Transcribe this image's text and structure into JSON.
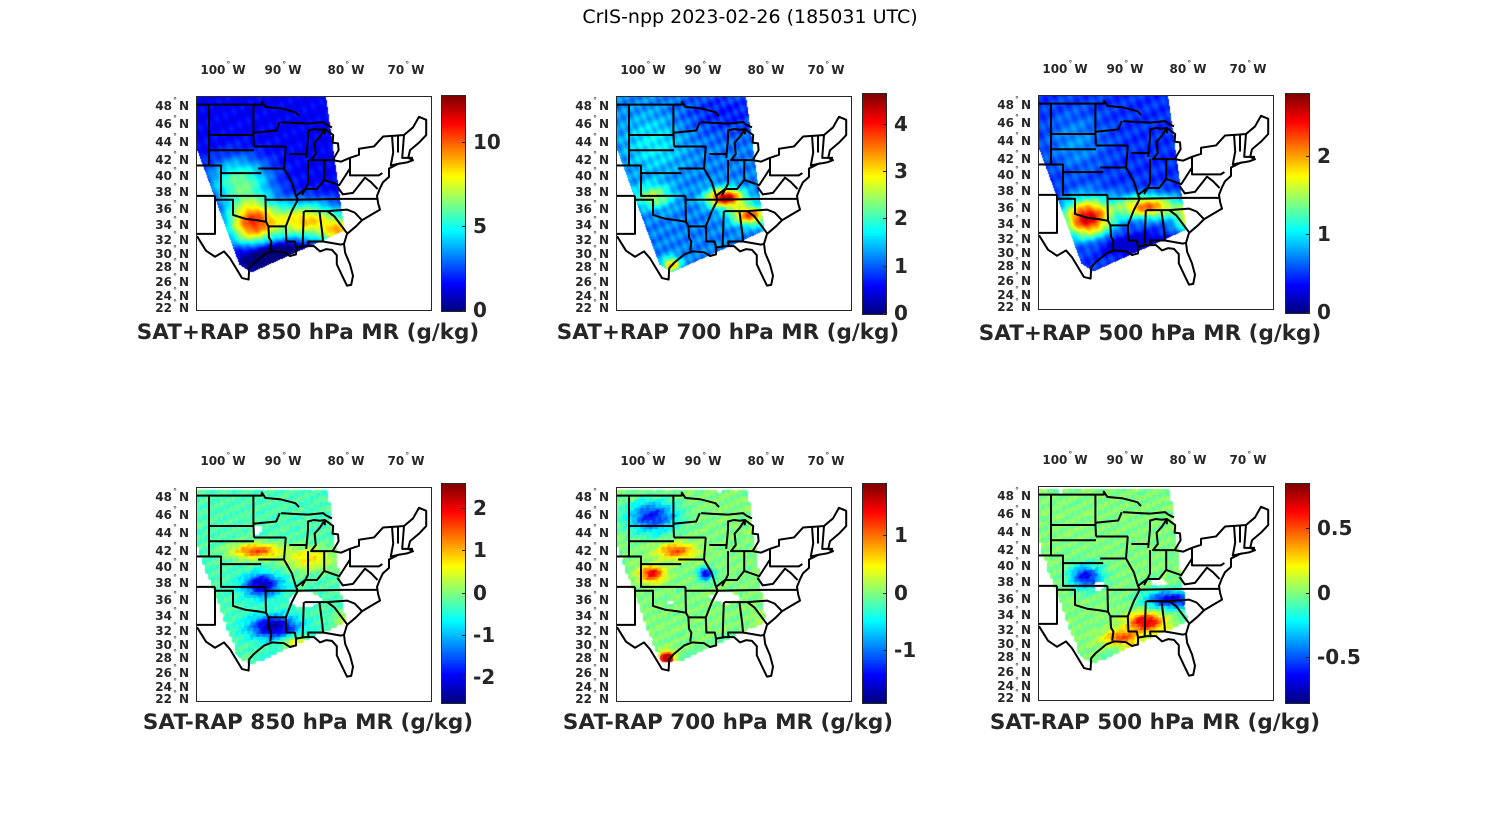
{
  "figure": {
    "title": "CrIS-npp 2023-02-26 (185031 UTC)"
  },
  "chart_data": [
    {
      "type": "heatmap",
      "id": "sat_plus_rap_850",
      "title": "SAT+RAP 850 hPa MR (g/kg)",
      "colormap": "jet",
      "clim": [
        0,
        12.8
      ],
      "colorbar_ticks": [
        0,
        5,
        10
      ],
      "colorbar_tick_labels": [
        "0",
        "5",
        "10"
      ],
      "lon_ticks": [
        "100° W",
        "90° W",
        "80° W",
        "70° W"
      ],
      "lat_ticks": [
        "48° N",
        "46° N",
        "44° N",
        "42° N",
        "40° N",
        "38° N",
        "36° N",
        "34° N",
        "32° N",
        "30° N",
        "28° N",
        "26° N",
        "24° N",
        "22° N"
      ],
      "lon_range": [
        -106,
        -67
      ],
      "lat_range": [
        22,
        50
      ],
      "field": "smooth",
      "features": [
        {
          "region": "northern plains / great lakes",
          "value": 1.5
        },
        {
          "region": "central plains band",
          "value": 5
        },
        {
          "region": "southern plains (OK/TX)",
          "value": 10.5
        },
        {
          "region": "deep south (AR/MS/AL/GA)",
          "value": 8.5
        },
        {
          "region": "gulf coast / south TX",
          "value": 3
        },
        {
          "region": "mid-atlantic",
          "value": 2
        }
      ]
    },
    {
      "type": "heatmap",
      "id": "sat_plus_rap_700",
      "title": "SAT+RAP 700 hPa MR (g/kg)",
      "colormap": "jet",
      "clim": [
        0,
        4.65
      ],
      "colorbar_ticks": [
        0,
        1,
        2,
        3,
        4
      ],
      "colorbar_tick_labels": [
        "0",
        "1",
        "2",
        "3",
        "4"
      ],
      "lon_ticks": [
        "100° W",
        "90° W",
        "80° W",
        "70° W"
      ],
      "lat_ticks": [
        "48° N",
        "46° N",
        "44° N",
        "42° N",
        "40° N",
        "38° N",
        "36° N",
        "34° N",
        "32° N",
        "30° N",
        "28° N",
        "26° N",
        "24° N",
        "22° N"
      ],
      "lon_range": [
        -106,
        -67
      ],
      "lat_range": [
        22,
        50
      ],
      "field": "smooth",
      "features": [
        {
          "region": "north / great lakes",
          "value": 1.2
        },
        {
          "region": "plains",
          "value": 1.8
        },
        {
          "region": "MO/KY/TN band",
          "value": 4.4
        },
        {
          "region": "TN-GA diagonal",
          "value": 3.8
        },
        {
          "region": "offshore SC/GA",
          "value": 4.3
        },
        {
          "region": "south TX coast",
          "value": 3.5
        },
        {
          "region": "gulf coast",
          "value": 0.8
        }
      ]
    },
    {
      "type": "heatmap",
      "id": "sat_plus_rap_500",
      "title": "SAT+RAP 500 hPa MR (g/kg)",
      "colormap": "jet",
      "clim": [
        0,
        2.8
      ],
      "colorbar_ticks": [
        0,
        1,
        2
      ],
      "colorbar_tick_labels": [
        "0",
        "1",
        "2"
      ],
      "lon_ticks": [
        "100° W",
        "90° W",
        "80° W",
        "70° W"
      ],
      "lat_ticks": [
        "48° N",
        "46° N",
        "44° N",
        "42° N",
        "40° N",
        "38° N",
        "36° N",
        "34° N",
        "32° N",
        "30° N",
        "28° N",
        "26° N",
        "24° N",
        "22° N"
      ],
      "lon_range": [
        -106,
        -67
      ],
      "lat_range": [
        22,
        50
      ],
      "field": "smooth",
      "features": [
        {
          "region": "north / great lakes",
          "value": 0.4
        },
        {
          "region": "plains",
          "value": 0.7
        },
        {
          "region": "OK/TX",
          "value": 2.5
        },
        {
          "region": "TN/AR/MS/AL",
          "value": 2.2
        },
        {
          "region": "carolinas",
          "value": 2.0
        },
        {
          "region": "gulf coast",
          "value": 0.9
        }
      ]
    },
    {
      "type": "heatmap",
      "id": "sat_minus_rap_850",
      "title": "SAT-RAP 850 hPa MR (g/kg)",
      "colormap": "jet",
      "clim": [
        -2.6,
        2.6
      ],
      "colorbar_ticks": [
        -2,
        -1,
        0,
        1,
        2
      ],
      "colorbar_tick_labels": [
        "-2",
        "-1",
        "0",
        "1",
        "2"
      ],
      "lon_ticks": [
        "100° W",
        "90° W",
        "80° W",
        "70° W"
      ],
      "lat_ticks": [
        "48° N",
        "46° N",
        "44° N",
        "42° N",
        "40° N",
        "38° N",
        "36° N",
        "34° N",
        "32° N",
        "30° N",
        "28° N",
        "26° N",
        "24° N",
        "22° N"
      ],
      "lon_range": [
        -106,
        -67
      ],
      "lat_range": [
        22,
        50
      ],
      "field": "scattered-dots",
      "features": [
        {
          "region": "north",
          "value": -0.3
        },
        {
          "region": "NE/IA/IL",
          "value": 1.2
        },
        {
          "region": "KS/MO",
          "value": -2.3
        },
        {
          "region": "LA/MS",
          "value": -2.5
        },
        {
          "region": "gulf coast",
          "value": 1.5
        },
        {
          "region": "TN/AL (missing)",
          "value": null
        }
      ]
    },
    {
      "type": "heatmap",
      "id": "sat_minus_rap_700",
      "title": "SAT-RAP 700 hPa MR (g/kg)",
      "colormap": "jet",
      "clim": [
        -1.9,
        1.9
      ],
      "colorbar_ticks": [
        -1,
        0,
        1
      ],
      "colorbar_tick_labels": [
        "-1",
        "0",
        "1"
      ],
      "lon_ticks": [
        "100° W",
        "90° W",
        "80° W",
        "70° W"
      ],
      "lat_ticks": [
        "48° N",
        "46° N",
        "44° N",
        "42° N",
        "40° N",
        "38° N",
        "36° N",
        "34° N",
        "32° N",
        "30° N",
        "28° N",
        "26° N",
        "24° N",
        "22° N"
      ],
      "lon_range": [
        -106,
        -67
      ],
      "lat_range": [
        22,
        50
      ],
      "field": "scattered-dots",
      "features": [
        {
          "region": "northern plains",
          "value": -1.3
        },
        {
          "region": "midwest",
          "value": 0.3
        },
        {
          "region": "KS",
          "value": 1.5
        },
        {
          "region": "SE coast (GA/SC)",
          "value": 1.6
        },
        {
          "region": "south TX",
          "value": 1.8
        },
        {
          "region": "MO",
          "value": -1.7
        }
      ]
    },
    {
      "type": "heatmap",
      "id": "sat_minus_rap_500",
      "title": "SAT-RAP 500 hPa MR (g/kg)",
      "colormap": "jet",
      "clim": [
        -0.85,
        0.85
      ],
      "colorbar_ticks": [
        -0.5,
        0,
        0.5
      ],
      "colorbar_tick_labels": [
        "-0.5",
        "0",
        "0.5"
      ],
      "lon_ticks": [
        "100° W",
        "90° W",
        "80° W",
        "70° W"
      ],
      "lat_ticks": [
        "48° N",
        "46° N",
        "44° N",
        "42° N",
        "40° N",
        "38° N",
        "36° N",
        "34° N",
        "32° N",
        "30° N",
        "28° N",
        "26° N",
        "24° N",
        "22° N"
      ],
      "lon_range": [
        -106,
        -67
      ],
      "lat_range": [
        22,
        50
      ],
      "field": "scattered-dots",
      "features": [
        {
          "region": "north",
          "value": 0.05
        },
        {
          "region": "KS/MO",
          "value": -0.7
        },
        {
          "region": "MS/AL",
          "value": 0.75
        },
        {
          "region": "TN/carolinas",
          "value": -0.75
        },
        {
          "region": "gulf coast",
          "value": 0.3
        }
      ]
    }
  ]
}
